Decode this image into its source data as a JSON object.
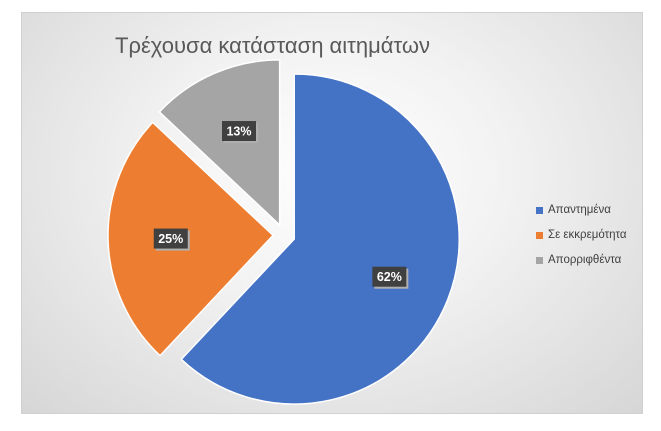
{
  "chart_data": {
    "type": "pie",
    "title": "Τρέχουσα κατάσταση αιτημάτων",
    "categories": [
      "Απαντημένα",
      "Σε εκκρεμότητα",
      "Απορριφθέντα"
    ],
    "values": [
      62,
      25,
      13
    ],
    "labels": [
      "62%",
      "25%",
      "13%"
    ],
    "colors": [
      "#4472C4",
      "#ED7D31",
      "#A5A5A5"
    ],
    "exploded": true,
    "legend_position": "right"
  }
}
